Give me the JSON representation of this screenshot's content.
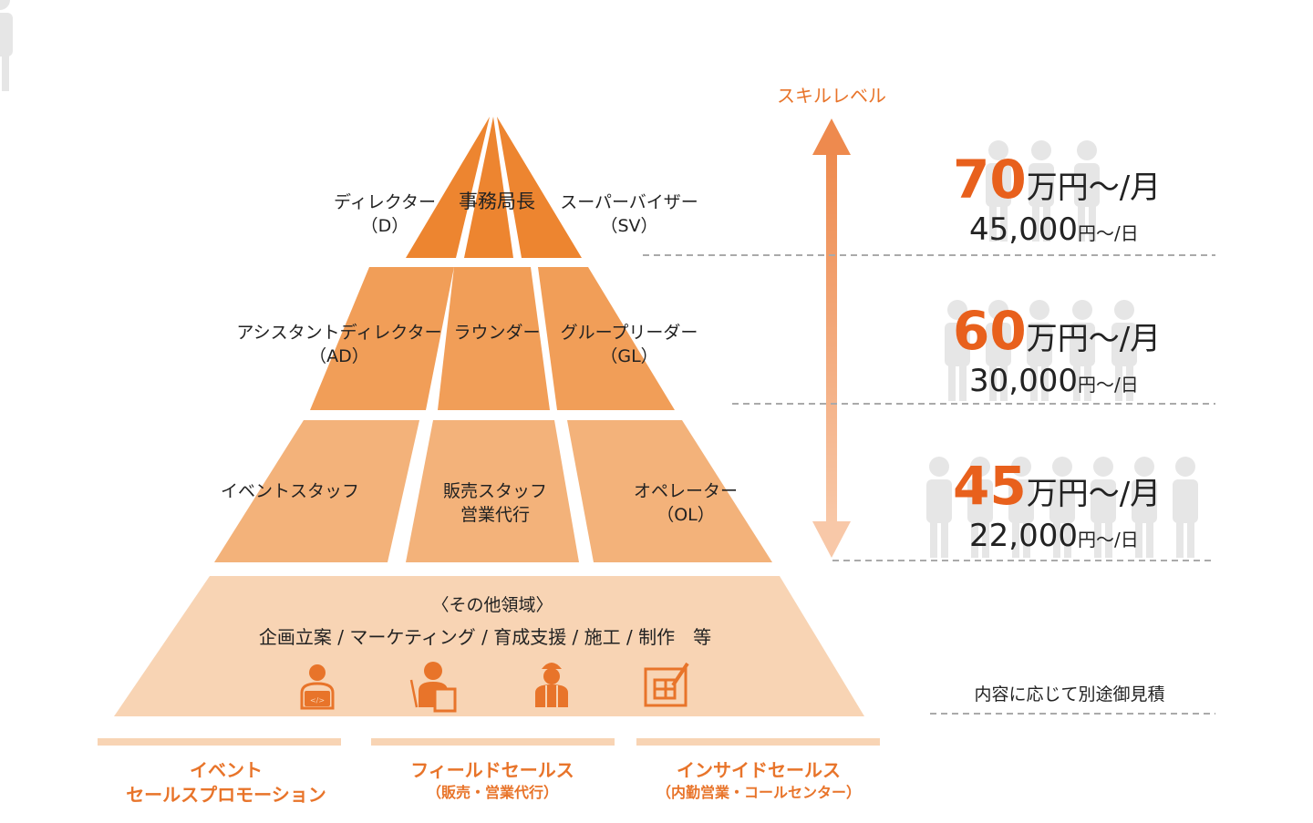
{
  "skill_level_label": "スキルレベル",
  "colors": {
    "tier1": "#ED8530",
    "tier2": "#F19E58",
    "tier3": "#F3B27A",
    "base": "#F8D4B4",
    "accent": "#E8601C"
  },
  "tiers": [
    {
      "left": [
        "ディレクター",
        "（D）"
      ],
      "center": [
        "事務局長"
      ],
      "right": [
        "スーパーバイザー",
        "（SV）"
      ]
    },
    {
      "left": [
        "アシスタントディレクター",
        "（AD）"
      ],
      "center": [
        "ラウンダー"
      ],
      "right": [
        "グループリーダー",
        "（GL）"
      ]
    },
    {
      "left": [
        "イベントスタッフ"
      ],
      "center": [
        "販売スタッフ",
        "営業代行"
      ],
      "right": [
        "オペレーター",
        "（OL）"
      ]
    }
  ],
  "base": {
    "title": "〈その他領域〉",
    "items": "企画立案 / マーケティング / 育成支援 / 施工 / 制作　等",
    "icons": [
      "programmer-icon",
      "teacher-icon",
      "construction-worker-icon",
      "blueprint-icon"
    ]
  },
  "prices": [
    {
      "monthly": "70",
      "monthly_unit": "万円～/月",
      "daily": "45,000",
      "daily_unit": "円～/日"
    },
    {
      "monthly": "60",
      "monthly_unit": "万円～/月",
      "daily": "30,000",
      "daily_unit": "円～/日"
    },
    {
      "monthly": "45",
      "monthly_unit": "万円～/月",
      "daily": "22,000",
      "daily_unit": "円～/日"
    }
  ],
  "estimate_note": "内容に応じて別途御見積",
  "categories": [
    {
      "title": [
        "イベント",
        "セールスプロモーション"
      ],
      "sub": ""
    },
    {
      "title": [
        "フィールドセールス"
      ],
      "sub": "（販売・営業代行）"
    },
    {
      "title": [
        "インサイドセールス"
      ],
      "sub": "（内勤営業・コールセンター）"
    }
  ]
}
